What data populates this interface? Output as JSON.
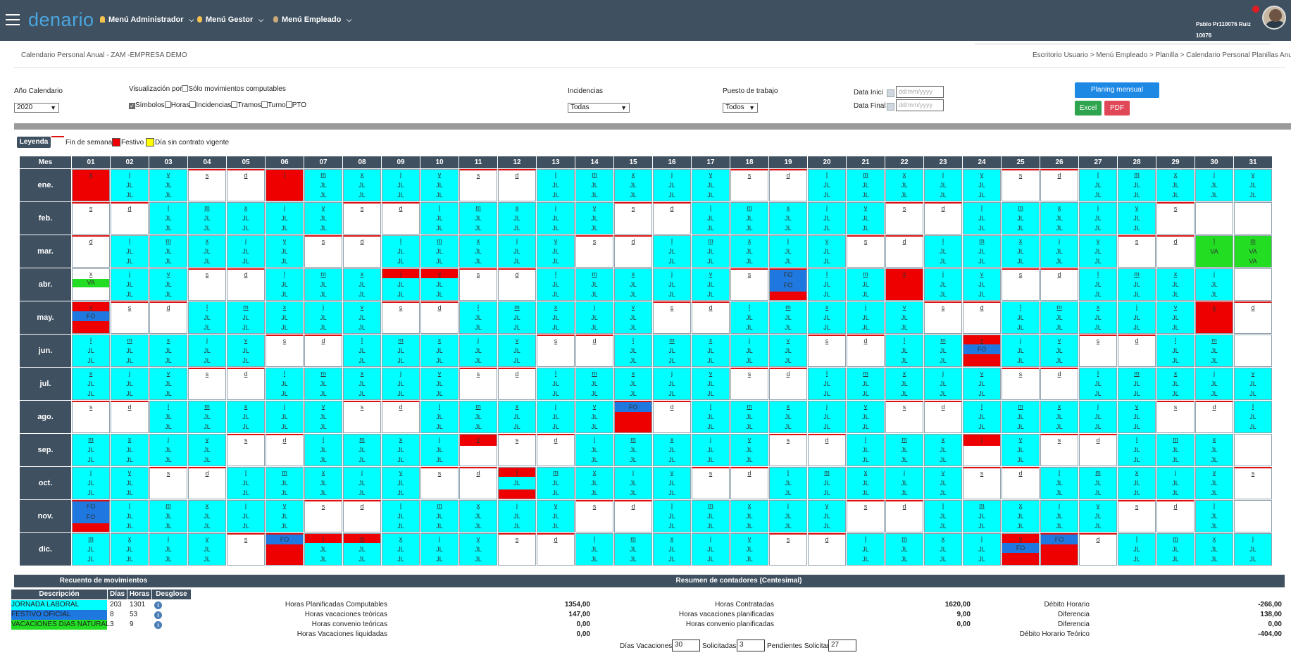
{
  "topbar": {
    "logo": "denario",
    "menus": [
      "Menú Administrador",
      "Menú Gestor",
      "Menú Empleado"
    ],
    "user_name": "Pablo Pr110076 Ruiz",
    "user_id": "10076"
  },
  "page": {
    "title": "Calendario Personal Anual - ZAM -EMPRESA DEMO",
    "breadcrumb": "Escritorio Usuario > Menú Empleado > Planilla > Calendario Personal Planillas Anual"
  },
  "filters": {
    "year_label": "Año Calendario",
    "year_value": "2020",
    "visual_label": "Visualización por",
    "only_computable": "Sólo movimientos computables",
    "options": [
      {
        "label": "Símbolos",
        "checked": true
      },
      {
        "label": "Horas",
        "checked": false
      },
      {
        "label": "Incidencias",
        "checked": false
      },
      {
        "label": "Tramos",
        "checked": false
      },
      {
        "label": "Turno",
        "checked": false
      },
      {
        "label": "PTO",
        "checked": false
      }
    ],
    "incidencias_label": "Incidencias",
    "incidencias_value": "Todas",
    "puesto_label": "Puesto de trabajo",
    "puesto_value": "Todos",
    "data_inici_label": "Data Inici",
    "data_final_label": "Data Final",
    "date_placeholder": "dd/mm/yyyy",
    "btn_planing": "Planing mensual",
    "btn_excel": "Excel",
    "btn_pdf": "PDF"
  },
  "legend": {
    "title": "Leyenda",
    "weekend": "Fin de semana",
    "festivo": "Festivo",
    "sin_contrato": "Día sin contrato vigente"
  },
  "calendar": {
    "mes_header": "Mes",
    "days": [
      "01",
      "02",
      "03",
      "04",
      "05",
      "06",
      "07",
      "08",
      "09",
      "10",
      "11",
      "12",
      "13",
      "14",
      "15",
      "16",
      "17",
      "18",
      "19",
      "20",
      "21",
      "22",
      "23",
      "24",
      "25",
      "26",
      "27",
      "28",
      "29",
      "30",
      "31"
    ],
    "months": [
      {
        "name": "ene.",
        "days_in_month": 31,
        "first_weekday": 2
      },
      {
        "name": "feb.",
        "days_in_month": 29,
        "first_weekday": 5
      },
      {
        "name": "mar.",
        "days_in_month": 31,
        "first_weekday": 6
      },
      {
        "name": "abr.",
        "days_in_month": 30,
        "first_weekday": 2
      },
      {
        "name": "may.",
        "days_in_month": 31,
        "first_weekday": 4
      },
      {
        "name": "jun.",
        "days_in_month": 30,
        "first_weekday": 0
      },
      {
        "name": "jul.",
        "days_in_month": 31,
        "first_weekday": 2
      },
      {
        "name": "ago.",
        "days_in_month": 31,
        "first_weekday": 5
      },
      {
        "name": "sep.",
        "days_in_month": 30,
        "first_weekday": 1
      },
      {
        "name": "oct.",
        "days_in_month": 31,
        "first_weekday": 3
      },
      {
        "name": "nov.",
        "days_in_month": 30,
        "first_weekday": 6
      },
      {
        "name": "dic.",
        "days_in_month": 31,
        "first_weekday": 1
      }
    ],
    "weekday_initials": [
      "l",
      "m",
      "x",
      "j",
      "v",
      "s",
      "d"
    ],
    "work_code": "JL",
    "festivo_code": "FO",
    "vacaciones_code": "VA",
    "colors": {
      "work": "#00ffff",
      "festivo": "#ee0000",
      "vacaciones": "#22dd22",
      "fo_band": "#1e78e0",
      "sin_contrato": "#ffff00"
    },
    "specials": {
      "0-1": "hol",
      "0-6": "hol",
      "2-30": "va",
      "2-31": "va",
      "3-1": "va_half",
      "3-9": "hol_work",
      "3-10": "hol_work",
      "3-19": "fo2",
      "3-22": "hol",
      "4-1": "fo_mid",
      "4-30": "hol",
      "5-24": "fo_mid",
      "7-15": "fo_top",
      "8-11": "hol_top",
      "8-24": "hol_top",
      "9-12": "hol_work_mid",
      "10-1": "fo2",
      "11-6": "fo_top",
      "11-7": "hol_work",
      "11-8": "hol_work_m",
      "11-25": "fo_mid",
      "11-26": "fo_top"
    }
  },
  "recuento": {
    "title": "Recuento de movimientos",
    "headers": [
      "Descripción",
      "Días",
      "Horas",
      "Desglose"
    ],
    "rows": [
      {
        "desc": "JORNADA LABORAL",
        "dias": "203",
        "horas": "1301",
        "color": "#00ffff"
      },
      {
        "desc": "FESTIVO OFICIAL",
        "dias": "8",
        "horas": "53",
        "color": "#1e78e0"
      },
      {
        "desc": "VACACIONES DIAS NATURAL",
        "dias": "3",
        "horas": "9",
        "color": "#22dd22"
      }
    ]
  },
  "resumen": {
    "title": "Resumen de contadores (Centesimal)",
    "col1": [
      {
        "label": "Horas Planificadas Computables",
        "value": "1354,00"
      },
      {
        "label": "Horas vacaciones teóricas",
        "value": "147,00"
      },
      {
        "label": "Horas convenio teóricas",
        "value": "0,00"
      },
      {
        "label": "Horas Vacaciones liquidadas",
        "value": "0,00"
      }
    ],
    "col2": [
      {
        "label": "Horas Contratadas",
        "value": "1620,00"
      },
      {
        "label": "Horas vacaciones planificadas",
        "value": "9,00"
      },
      {
        "label": "Horas convenio planificadas",
        "value": "0,00"
      }
    ],
    "col3": [
      {
        "label": "Débito Horario",
        "value": "-266,00"
      },
      {
        "label": "Diferencia",
        "value": "138,00"
      },
      {
        "label": "Diferencia",
        "value": "0,00"
      },
      {
        "label": "Débito Horario Teórico",
        "value": "-404,00"
      }
    ],
    "dias_vac_label": "Días Vacaciones",
    "dias_vac_value": "30",
    "solicitadas_label": "Solicitadas",
    "solicitadas_value": "3",
    "pendientes_label": "Pendientes Solicitar",
    "pendientes_value": "27"
  }
}
